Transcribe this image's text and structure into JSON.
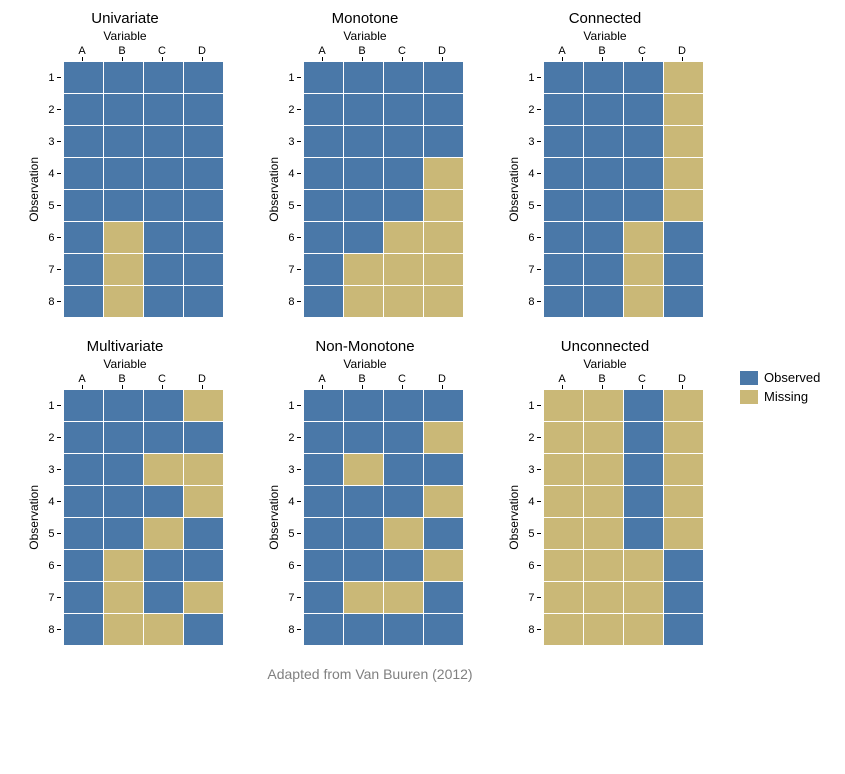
{
  "colors": {
    "observed": "#4a78a8",
    "missing": "#cab877",
    "gridline": "#ffffff",
    "background": "#ffffff",
    "text": "#000000",
    "caption": "#808080"
  },
  "cell": {
    "width": 40,
    "height": 32
  },
  "columns": [
    "A",
    "B",
    "C",
    "D"
  ],
  "rows": [
    "1",
    "2",
    "3",
    "4",
    "5",
    "6",
    "7",
    "8"
  ],
  "axis_labels": {
    "x": "Variable",
    "y": "Observation"
  },
  "legend": {
    "items": [
      {
        "label": "Observed",
        "color_key": "observed"
      },
      {
        "label": "Missing",
        "color_key": "missing"
      }
    ]
  },
  "caption": "Adapted from Van Buuren (2012)",
  "panels": [
    {
      "title": "Univariate",
      "data": [
        [
          1,
          1,
          1,
          1
        ],
        [
          1,
          1,
          1,
          1
        ],
        [
          1,
          1,
          1,
          1
        ],
        [
          1,
          1,
          1,
          1
        ],
        [
          1,
          1,
          1,
          1
        ],
        [
          1,
          0,
          1,
          1
        ],
        [
          1,
          0,
          1,
          1
        ],
        [
          1,
          0,
          1,
          1
        ]
      ]
    },
    {
      "title": "Monotone",
      "data": [
        [
          1,
          1,
          1,
          1
        ],
        [
          1,
          1,
          1,
          1
        ],
        [
          1,
          1,
          1,
          1
        ],
        [
          1,
          1,
          1,
          0
        ],
        [
          1,
          1,
          1,
          0
        ],
        [
          1,
          1,
          0,
          0
        ],
        [
          1,
          0,
          0,
          0
        ],
        [
          1,
          0,
          0,
          0
        ]
      ]
    },
    {
      "title": "Connected",
      "data": [
        [
          1,
          1,
          1,
          0
        ],
        [
          1,
          1,
          1,
          0
        ],
        [
          1,
          1,
          1,
          0
        ],
        [
          1,
          1,
          1,
          0
        ],
        [
          1,
          1,
          1,
          0
        ],
        [
          1,
          1,
          0,
          1
        ],
        [
          1,
          1,
          0,
          1
        ],
        [
          1,
          1,
          0,
          1
        ]
      ]
    },
    {
      "title": "Multivariate",
      "data": [
        [
          1,
          1,
          1,
          0
        ],
        [
          1,
          1,
          1,
          1
        ],
        [
          1,
          1,
          0,
          0
        ],
        [
          1,
          1,
          1,
          0
        ],
        [
          1,
          1,
          0,
          1
        ],
        [
          1,
          0,
          1,
          1
        ],
        [
          1,
          0,
          1,
          0
        ],
        [
          1,
          0,
          0,
          1
        ]
      ]
    },
    {
      "title": "Non-Monotone",
      "data": [
        [
          1,
          1,
          1,
          1
        ],
        [
          1,
          1,
          1,
          0
        ],
        [
          1,
          0,
          1,
          1
        ],
        [
          1,
          1,
          1,
          0
        ],
        [
          1,
          1,
          0,
          1
        ],
        [
          1,
          1,
          1,
          0
        ],
        [
          1,
          0,
          0,
          1
        ],
        [
          1,
          1,
          1,
          1
        ]
      ]
    },
    {
      "title": "Unconnected",
      "data": [
        [
          0,
          0,
          1,
          0
        ],
        [
          0,
          0,
          1,
          0
        ],
        [
          0,
          0,
          1,
          0
        ],
        [
          0,
          0,
          1,
          0
        ],
        [
          0,
          0,
          1,
          0
        ],
        [
          0,
          0,
          0,
          1
        ],
        [
          0,
          0,
          0,
          1
        ],
        [
          0,
          0,
          0,
          1
        ]
      ]
    }
  ]
}
